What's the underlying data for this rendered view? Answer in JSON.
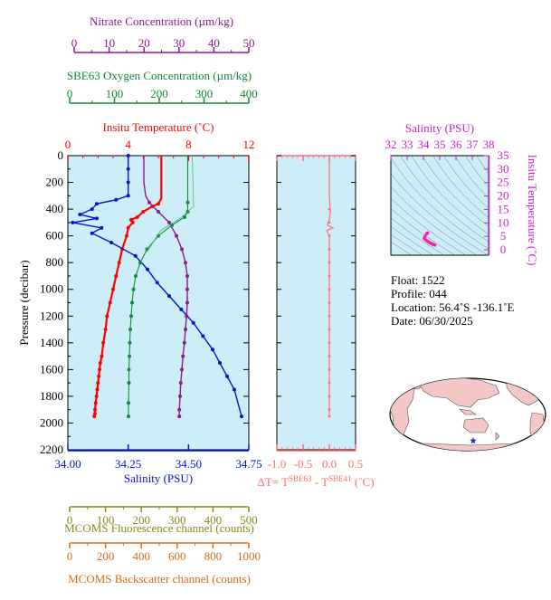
{
  "colors": {
    "panel_bg": "#cdeef8",
    "nitrate": "#8b1a8b",
    "oxygen": "#138a3a",
    "temperature": "#ff0000",
    "salinity": "#0014d8",
    "fluorescence": "#8a8a1a",
    "backscatter": "#d96b1a",
    "delta_t": "#ff6f6f",
    "ts_axis": "#cc22cc",
    "map_land": "#f4c6c6",
    "map_star": "#1a2bd9"
  },
  "axes": {
    "nitrate": {
      "label": "Nitrate Concentration (µm/kg)",
      "ticks": [
        "0",
        "10",
        "20",
        "30",
        "40",
        "50"
      ]
    },
    "oxygen": {
      "label": "SBE63 Oxygen Concentration (µm/kg)",
      "ticks": [
        "0",
        "100",
        "200",
        "300",
        "400"
      ]
    },
    "temperature": {
      "label": "Insitu Temperature (˚C)",
      "ticks": [
        "0",
        "4",
        "8",
        "12"
      ]
    },
    "pressure": {
      "label": "Pressure (decibar)",
      "ticks": [
        "0",
        "200",
        "400",
        "600",
        "800",
        "1000",
        "1200",
        "1400",
        "1600",
        "1800",
        "2000",
        "2200"
      ]
    },
    "salinity": {
      "label": "Salinity (PSU)",
      "ticks": [
        "34.00",
        "34.25",
        "34.50",
        "34.75"
      ]
    },
    "fluorescence": {
      "label": "MCOMS Fluorescence channel (counts)",
      "ticks": [
        "0",
        "100",
        "200",
        "300",
        "400",
        "500"
      ]
    },
    "backscatter": {
      "label": "MCOMS Backscatter channel (counts)",
      "ticks": [
        "0",
        "200",
        "400",
        "600",
        "800",
        "1000"
      ]
    },
    "delta_t": {
      "label_prefix": "ΔT= T",
      "sup1": "SBE63",
      "label_mid": " - T",
      "sup2": "SBE41",
      "label_suffix": " (˚C)",
      "ticks": [
        "-1.0",
        "-0.5",
        "0.0",
        "0.5"
      ]
    },
    "ts_salinity": {
      "label": "Salinity (PSU)",
      "ticks": [
        "32",
        "33",
        "34",
        "35",
        "36",
        "37",
        "38"
      ]
    },
    "ts_temperature": {
      "label": "Insitu Temperature (˚C)",
      "ticks": [
        "35",
        "30",
        "25",
        "20",
        "15",
        "10",
        "5",
        "0"
      ]
    }
  },
  "info": {
    "float": "Float:  1522",
    "profile": "Profile:  044",
    "location": "Location:  56.4˚S  -136.1˚E",
    "date": "Date:  06/30/2025"
  },
  "chart_data": [
    {
      "type": "line",
      "title": "",
      "ylabel": "Pressure (decibar)",
      "ylim": [
        2200,
        0
      ],
      "series": [
        {
          "name": "Insitu Temperature",
          "x_axis": "temperature",
          "xlim": [
            0,
            12
          ],
          "x": [
            6.2,
            6.2,
            6.2,
            6.2,
            6.0,
            5.6,
            5.0,
            4.6,
            4.2,
            4.3,
            4.0,
            3.9,
            3.6,
            3.4,
            3.2,
            3.0,
            2.8,
            2.6,
            2.5,
            2.35,
            2.25,
            2.15,
            2.1,
            2.05,
            2.0,
            1.95,
            1.9,
            1.85,
            1.8,
            1.8,
            1.75
          ],
          "y": [
            0,
            100,
            200,
            320,
            360,
            380,
            420,
            460,
            480,
            500,
            540,
            600,
            700,
            800,
            900,
            1000,
            1100,
            1200,
            1300,
            1400,
            1500,
            1550,
            1600,
            1650,
            1700,
            1750,
            1800,
            1850,
            1900,
            1930,
            1950
          ]
        },
        {
          "name": "Salinity",
          "x_axis": "salinity",
          "xlim": [
            34.0,
            34.75
          ],
          "x": [
            34.25,
            34.25,
            34.25,
            34.25,
            34.2,
            34.12,
            34.1,
            34.05,
            34.12,
            34.02,
            34.14,
            34.1,
            34.18,
            34.28,
            34.33,
            34.37,
            34.42,
            34.47,
            34.52,
            34.56,
            34.6,
            34.63,
            34.66,
            34.69,
            34.72
          ],
          "y": [
            0,
            100,
            200,
            300,
            330,
            360,
            400,
            440,
            470,
            500,
            540,
            580,
            650,
            750,
            850,
            950,
            1050,
            1150,
            1250,
            1350,
            1450,
            1550,
            1650,
            1750,
            1950
          ]
        },
        {
          "name": "Nitrate",
          "x_axis": "nitrate",
          "xlim": [
            0,
            50
          ],
          "x": [
            21,
            21,
            21,
            21.5,
            22.5,
            25,
            28,
            30,
            31.5,
            32.5,
            33,
            33,
            33,
            32.8,
            32.5,
            32.2,
            31.8,
            31.5,
            31.2,
            31.0,
            30.8,
            30.8
          ],
          "y": [
            0,
            100,
            200,
            300,
            350,
            420,
            500,
            600,
            700,
            800,
            900,
            1000,
            1100,
            1200,
            1300,
            1400,
            1500,
            1600,
            1700,
            1800,
            1900,
            1950
          ]
        },
        {
          "name": "SBE63 Oxygen",
          "x_axis": "oxygen",
          "xlim": [
            0,
            400
          ],
          "x": [
            265,
            265,
            265,
            265,
            258,
            230,
            200,
            175,
            160,
            150,
            145,
            142,
            140,
            138,
            137,
            136,
            135,
            135,
            134,
            134
          ],
          "y": [
            0,
            200,
            350,
            420,
            460,
            520,
            600,
            700,
            800,
            900,
            1000,
            1100,
            1200,
            1300,
            1400,
            1500,
            1600,
            1700,
            1850,
            1950
          ]
        }
      ]
    },
    {
      "type": "line",
      "title": "",
      "xlabel": "ΔT= TSBE63 - TSBE41 (˚C)",
      "xlim": [
        -1.0,
        0.5
      ],
      "ylim": [
        2200,
        0
      ],
      "series": [
        {
          "name": "ΔT",
          "x": [
            0.0,
            0.0,
            0.02,
            0.0,
            -0.04,
            0.07,
            -0.05,
            0.0,
            0.0,
            0.0,
            0.0,
            0.0,
            0.0,
            0.0
          ],
          "y": [
            0,
            300,
            420,
            480,
            520,
            540,
            560,
            600,
            800,
            1000,
            1200,
            1400,
            1700,
            1950
          ]
        }
      ]
    },
    {
      "type": "scatter",
      "title": "",
      "xlabel": "Salinity (PSU)",
      "ylabel": "Insitu Temperature (˚C)",
      "xlim": [
        32,
        38
      ],
      "ylim": [
        -2,
        35
      ],
      "series": [
        {
          "name": "T-S",
          "x": [
            34.25,
            34.2,
            34.1,
            34.05,
            34.1,
            34.2,
            34.3,
            34.4,
            34.5,
            34.6,
            34.7
          ],
          "y": [
            6.2,
            6.0,
            5.0,
            4.3,
            3.9,
            3.4,
            3.0,
            2.6,
            2.3,
            2.0,
            1.8
          ]
        }
      ]
    }
  ]
}
